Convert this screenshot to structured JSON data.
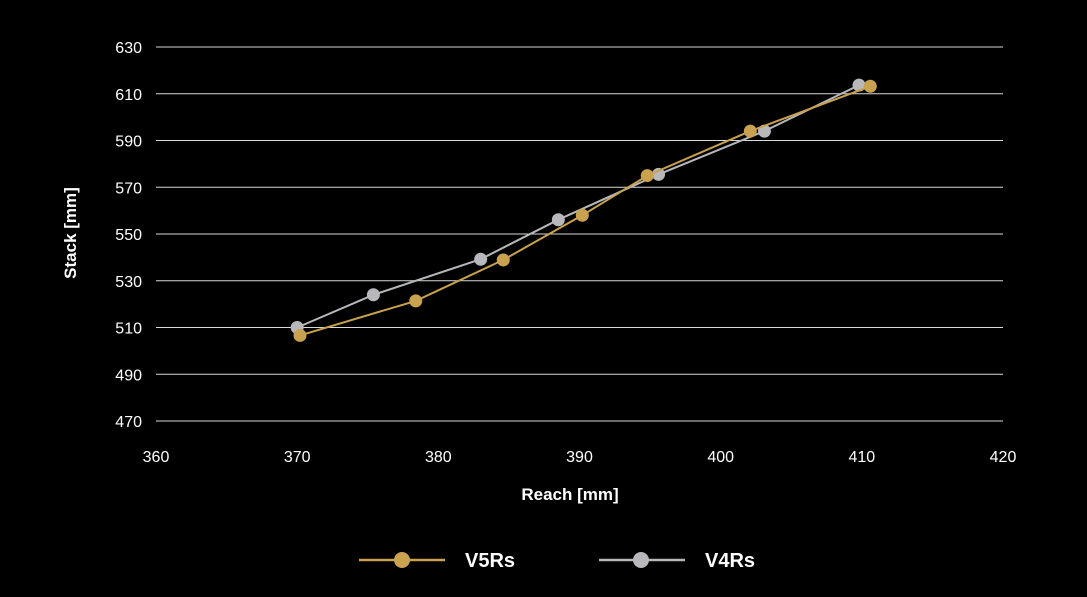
{
  "chart_data": {
    "type": "line",
    "title": "",
    "xlabel": "Reach [mm]",
    "ylabel": "Stack [mm]",
    "xlim": [
      360,
      420
    ],
    "ylim": [
      470,
      630
    ],
    "xticks": [
      360,
      370,
      380,
      390,
      400,
      410,
      420
    ],
    "yticks": [
      470,
      490,
      510,
      530,
      550,
      570,
      590,
      610,
      630
    ],
    "grid": "horizontal",
    "legend_position": "bottom",
    "series": [
      {
        "name": "V5Rs",
        "color": "#c9a24f",
        "points": [
          {
            "x": 370.2,
            "y": 506.6
          },
          {
            "x": 378.4,
            "y": 521.4
          },
          {
            "x": 384.6,
            "y": 538.9
          },
          {
            "x": 390.2,
            "y": 558.0
          },
          {
            "x": 394.8,
            "y": 575.0
          },
          {
            "x": 402.1,
            "y": 594.0
          },
          {
            "x": 410.6,
            "y": 613.2
          }
        ]
      },
      {
        "name": "V4Rs",
        "color": "#b8b8bc",
        "points": [
          {
            "x": 370.0,
            "y": 510.0
          },
          {
            "x": 375.4,
            "y": 524.0
          },
          {
            "x": 383.0,
            "y": 539.2
          },
          {
            "x": 388.5,
            "y": 556.1
          },
          {
            "x": 395.6,
            "y": 575.5
          },
          {
            "x": 403.1,
            "y": 594.0
          },
          {
            "x": 409.8,
            "y": 613.7
          }
        ]
      }
    ]
  }
}
